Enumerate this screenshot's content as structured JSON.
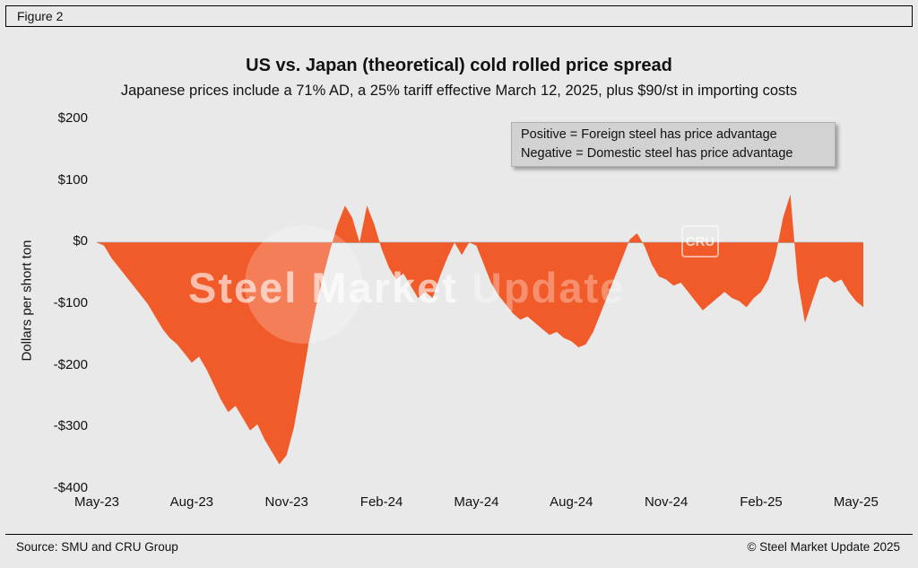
{
  "figure_label": "Figure 2",
  "chart_data": {
    "type": "area",
    "title": "US vs. Japan (theoretical) cold rolled price spread",
    "subtitle": "Japanese prices include a 71% AD, a 25% tariff effective March 12, 2025, plus $90/st in importing costs",
    "ylabel": "Dollars per short ton",
    "xlabel": "",
    "series_name": "US minus Japan theoretical cold rolled price spread ($/short ton)",
    "x_frequency": "weekly",
    "ylim": [
      -400,
      200
    ],
    "grid": false,
    "legend_position": "top-right note box",
    "y_ticks": [
      {
        "value": 200,
        "label": "$200"
      },
      {
        "value": 100,
        "label": "$100"
      },
      {
        "value": 0,
        "label": "$0"
      },
      {
        "value": -100,
        "label": "-$100"
      },
      {
        "value": -200,
        "label": "-$200"
      },
      {
        "value": -300,
        "label": "-$300"
      },
      {
        "value": -400,
        "label": "-$400"
      }
    ],
    "x_ticks": [
      {
        "week": 0,
        "label": "May-23"
      },
      {
        "week": 13,
        "label": "Aug-23"
      },
      {
        "week": 26,
        "label": "Nov-23"
      },
      {
        "week": 39,
        "label": "Feb-24"
      },
      {
        "week": 52,
        "label": "May-24"
      },
      {
        "week": 65,
        "label": "Aug-24"
      },
      {
        "week": 78,
        "label": "Nov-24"
      },
      {
        "week": 91,
        "label": "Feb-25"
      },
      {
        "week": 104,
        "label": "May-25"
      }
    ],
    "weeks_total": 105,
    "values": [
      0,
      -5,
      -25,
      -40,
      -55,
      -70,
      -85,
      -100,
      -120,
      -140,
      -155,
      -165,
      -180,
      -195,
      -185,
      -205,
      -230,
      -255,
      -275,
      -265,
      -285,
      -305,
      -295,
      -320,
      -340,
      -360,
      -345,
      -300,
      -235,
      -165,
      -105,
      -55,
      -10,
      30,
      60,
      40,
      0,
      60,
      30,
      -10,
      -40,
      -60,
      -50,
      -70,
      -90,
      -80,
      -90,
      -55,
      -25,
      0,
      -20,
      0,
      -5,
      -35,
      -65,
      -85,
      -100,
      -115,
      -125,
      -120,
      -130,
      -140,
      -150,
      -145,
      -155,
      -160,
      -170,
      -165,
      -145,
      -115,
      -85,
      -55,
      -25,
      5,
      15,
      -5,
      -35,
      -55,
      -60,
      -70,
      -65,
      -80,
      -95,
      -110,
      -100,
      -90,
      -80,
      -90,
      -95,
      -105,
      -90,
      -80,
      -60,
      -20,
      40,
      78,
      -60,
      -130,
      -95,
      -60,
      -55,
      -65,
      -60,
      -80,
      -95,
      -105
    ],
    "fill_color": "#F15A29",
    "zero_line_color": "#ADADAD",
    "legend_note": [
      "Positive = Foreign steel has price advantage",
      "Negative = Domestic steel has price advantage"
    ]
  },
  "watermark": {
    "brand_strong": "Steel Market",
    "brand_light": " Update",
    "cru": "CRU"
  },
  "footer": {
    "source": "Source: SMU and CRU Group",
    "copyright": "© Steel Market Update 2025"
  }
}
